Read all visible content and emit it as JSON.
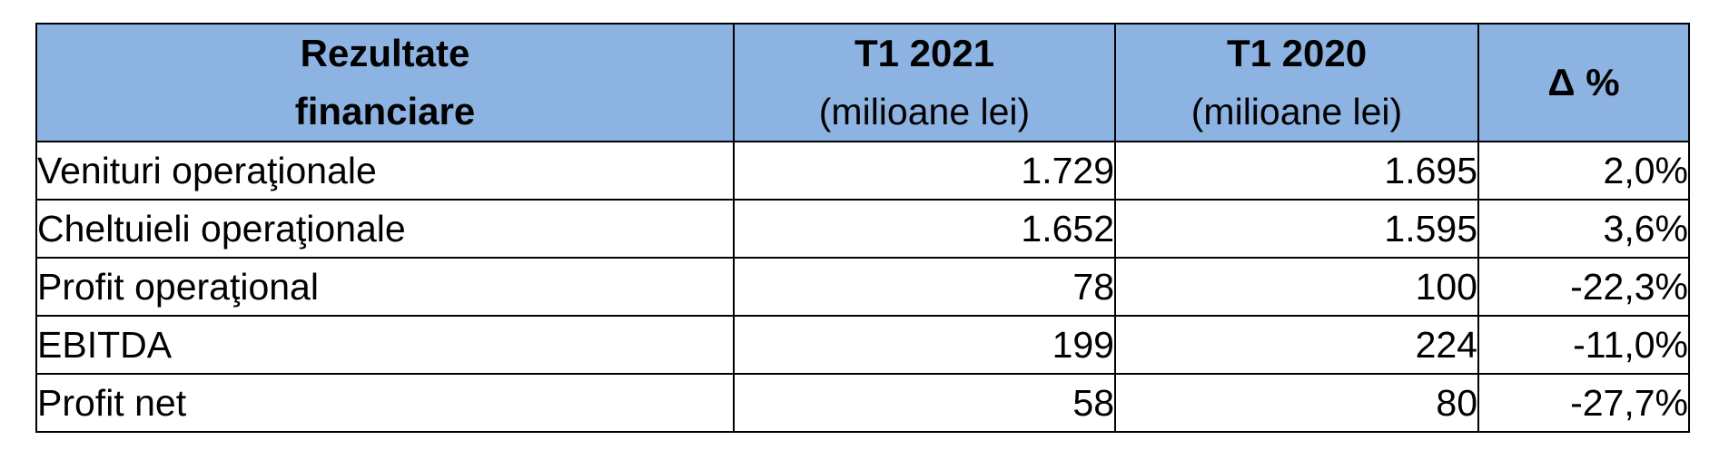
{
  "table": {
    "headers": [
      {
        "line1": "Rezultate",
        "line2": "financiare"
      },
      {
        "line1": "T1 2021",
        "line2": "(milioane lei)"
      },
      {
        "line1": "T1 2020",
        "line2": "(milioane lei)"
      },
      {
        "line1": "Δ %",
        "line2": ""
      }
    ],
    "rows": [
      {
        "label": "Venituri operaţionale",
        "t1_2021": "1.729",
        "t1_2020": "1.695",
        "delta": "2,0%"
      },
      {
        "label": "Cheltuieli operaţionale",
        "t1_2021": "1.652",
        "t1_2020": "1.595",
        "delta": "3,6%"
      },
      {
        "label": "Profit operaţional",
        "t1_2021": "78",
        "t1_2020": "100",
        "delta": "-22,3%"
      },
      {
        "label": "EBITDA",
        "t1_2021": "199",
        "t1_2020": "224",
        "delta": "-11,0%"
      },
      {
        "label": "Profit net",
        "t1_2021": "58",
        "t1_2020": "80",
        "delta": "-27,7%"
      }
    ],
    "colors": {
      "header_background": "#8db3e2",
      "border": "#000000"
    }
  }
}
